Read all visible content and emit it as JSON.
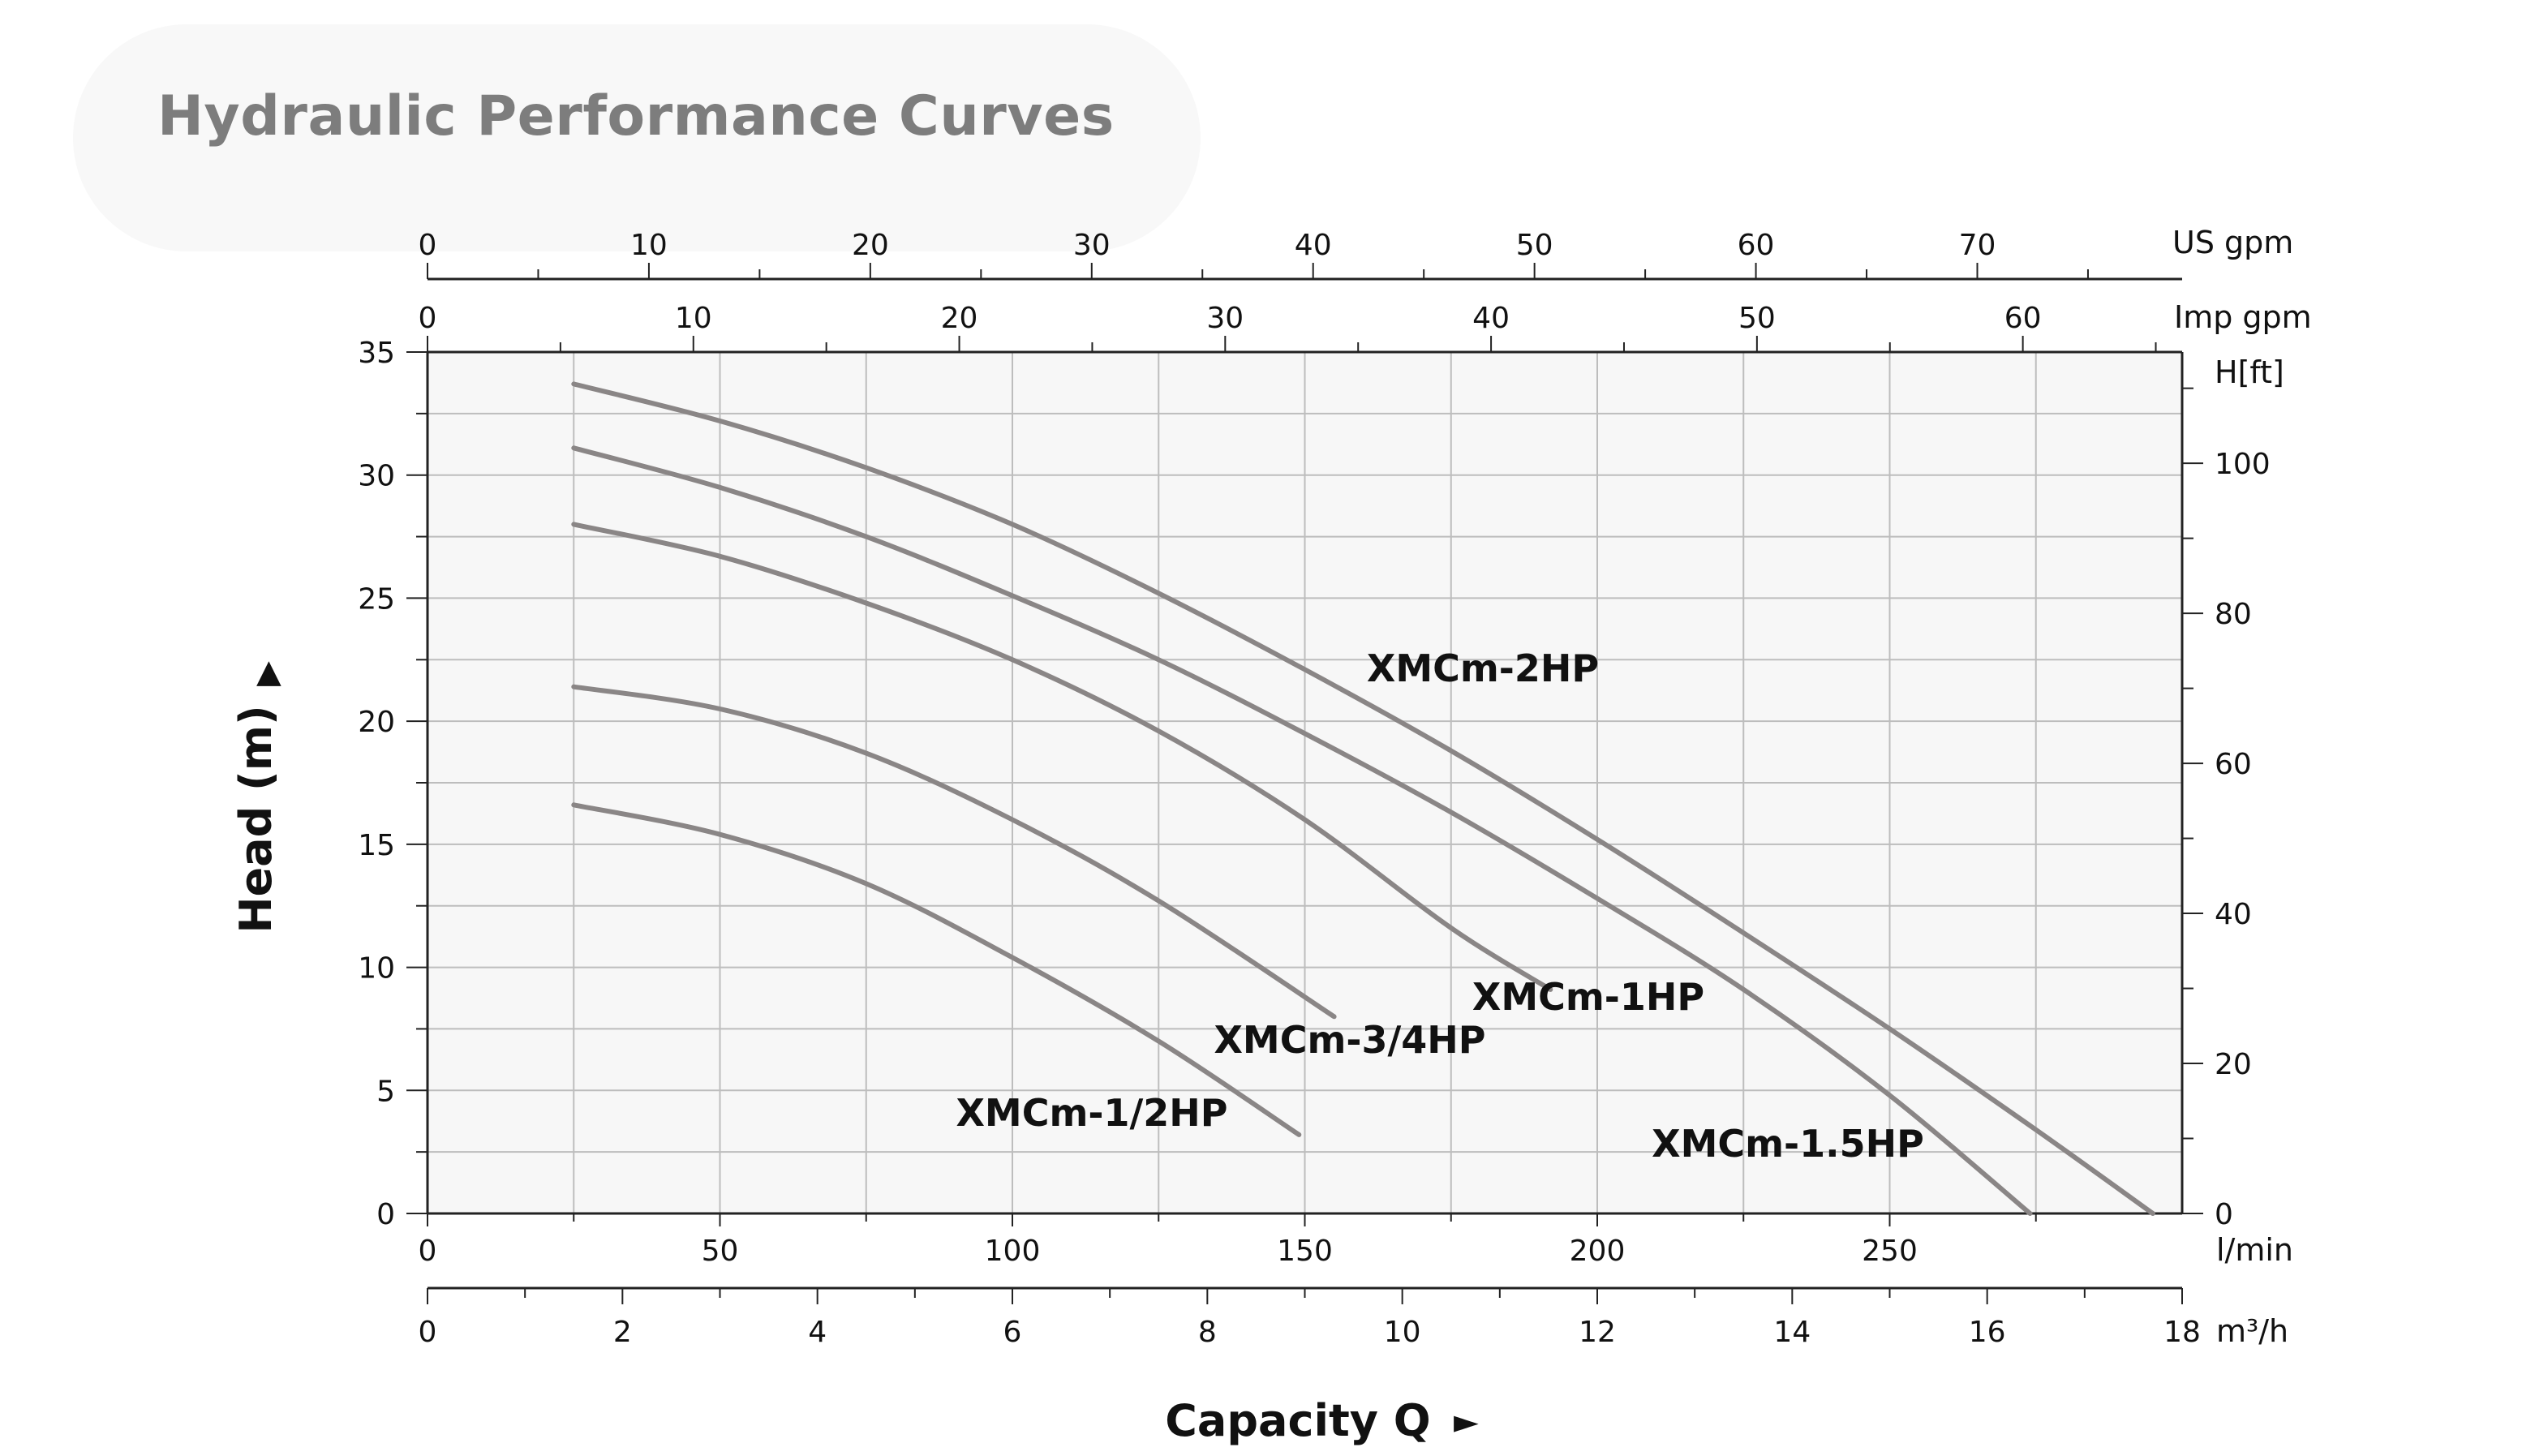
{
  "title": "Hydraulic Performance Curves",
  "chart_data": {
    "type": "line",
    "xlabel": "Capacity Q",
    "ylabel": "Head (m)",
    "x_unit": "l/min",
    "xlim": [
      0,
      300
    ],
    "ylim": [
      0,
      35
    ],
    "grid": true,
    "x_ticks": [
      0,
      50,
      100,
      150,
      200,
      250
    ],
    "y_ticks": [
      0,
      5,
      10,
      15,
      20,
      25,
      30,
      35
    ],
    "secondary_axes": {
      "us_gpm": {
        "label": "US gpm",
        "ticks": [
          0,
          10,
          20,
          30,
          40,
          50,
          60,
          70
        ]
      },
      "imp_gpm": {
        "label": "Imp gpm",
        "ticks": [
          0,
          10,
          20,
          30,
          40,
          50,
          60
        ]
      },
      "m3h": {
        "label": "m³/h",
        "ticks": [
          0,
          2,
          4,
          6,
          8,
          10,
          12,
          14,
          16,
          18
        ]
      },
      "h_ft": {
        "label": "H[ft]",
        "ticks": [
          0,
          20,
          40,
          60,
          80,
          100
        ]
      }
    },
    "series": [
      {
        "name": "XMCm-2HP",
        "x": [
          25,
          50,
          75,
          100,
          125,
          150,
          175,
          200,
          225,
          250,
          275,
          295
        ],
        "y": [
          33.7,
          32.2,
          30.3,
          28.0,
          25.2,
          22.1,
          18.8,
          15.2,
          11.4,
          7.5,
          3.4,
          0
        ]
      },
      {
        "name": "XMCm-1.5HP",
        "x": [
          25,
          50,
          75,
          100,
          125,
          150,
          175,
          200,
          225,
          250,
          274
        ],
        "y": [
          31.1,
          29.5,
          27.5,
          25.1,
          22.5,
          19.5,
          16.3,
          12.8,
          9.1,
          4.8,
          0
        ]
      },
      {
        "name": "XMCm-1HP",
        "x": [
          25,
          50,
          75,
          100,
          125,
          150,
          175,
          192
        ],
        "y": [
          28.0,
          26.7,
          24.8,
          22.5,
          19.6,
          16.0,
          11.6,
          9.1
        ]
      },
      {
        "name": "XMCm-3/4HP",
        "x": [
          25,
          50,
          75,
          100,
          125,
          155
        ],
        "y": [
          21.4,
          20.5,
          18.7,
          16.0,
          12.7,
          8.0
        ]
      },
      {
        "name": "XMCm-1/2HP",
        "x": [
          25,
          50,
          75,
          100,
          125,
          149
        ],
        "y": [
          16.6,
          15.4,
          13.4,
          10.4,
          7.0,
          3.2
        ]
      }
    ]
  }
}
